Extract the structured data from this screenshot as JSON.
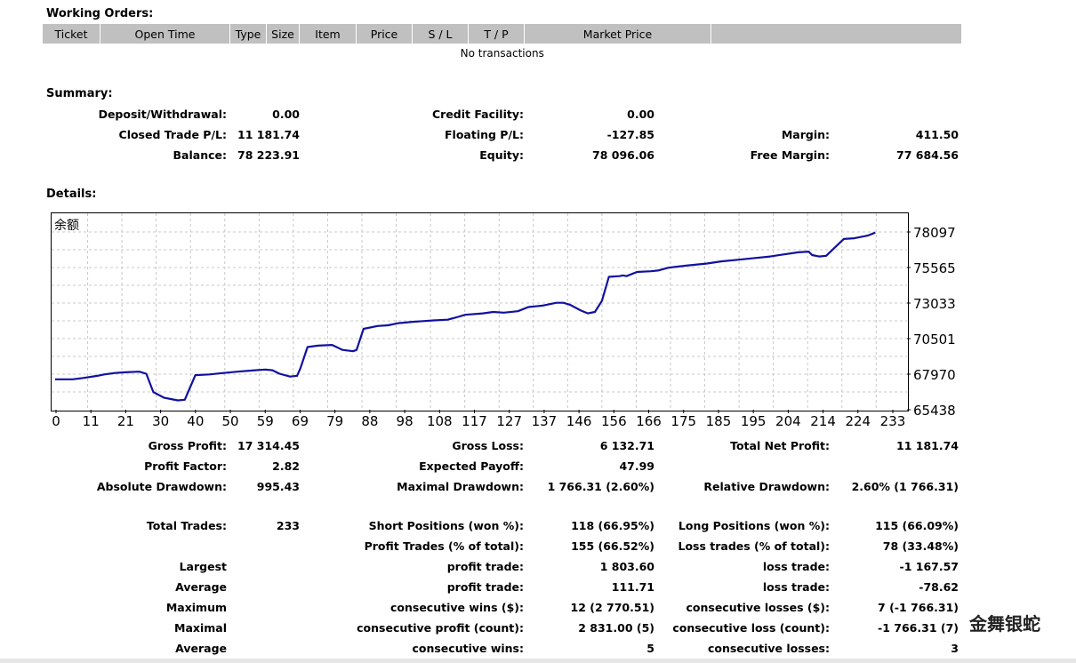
{
  "working_orders": {
    "title": "Working Orders:",
    "columns": [
      "Ticket",
      "Open Time",
      "Type",
      "Size",
      "Item",
      "Price",
      "S / L",
      "T / P",
      "Market Price",
      ""
    ],
    "empty_message": "No transactions"
  },
  "summary": {
    "title": "Summary:",
    "deposit_label": "Deposit/Withdrawal:",
    "deposit_value": "0.00",
    "credit_label": "Credit Facility:",
    "credit_value": "0.00",
    "closed_pl_label": "Closed Trade P/L:",
    "closed_pl_value": "11 181.74",
    "floating_pl_label": "Floating P/L:",
    "floating_pl_value": "-127.85",
    "margin_label": "Margin:",
    "margin_value": "411.50",
    "balance_label": "Balance:",
    "balance_value": "78 223.91",
    "equity_label": "Equity:",
    "equity_value": "78 096.06",
    "free_margin_label": "Free Margin:",
    "free_margin_value": "77 684.56"
  },
  "details": {
    "title": "Details:"
  },
  "chart_data": {
    "type": "line",
    "title": "余额",
    "line_color": "#1010a0",
    "grid": true,
    "x_ticks": [
      "0",
      "11",
      "21",
      "30",
      "40",
      "50",
      "59",
      "69",
      "79",
      "88",
      "98",
      "108",
      "117",
      "127",
      "137",
      "146",
      "156",
      "166",
      "175",
      "185",
      "195",
      "204",
      "214",
      "224",
      "233"
    ],
    "y_ticks": [
      "78097",
      "75565",
      "73033",
      "70501",
      "67970",
      "65438"
    ],
    "ylim": [
      65438,
      78097
    ],
    "xlim": [
      0,
      239
    ],
    "series": [
      {
        "x": [
          0,
          5,
          8,
          12,
          14,
          17,
          20,
          24,
          26,
          28,
          31,
          33,
          35,
          37,
          40,
          44,
          48,
          52,
          57,
          60,
          62,
          64,
          67,
          69,
          70,
          72,
          75,
          79,
          82,
          85,
          86,
          88,
          92,
          95,
          98,
          102,
          105,
          108,
          112,
          115,
          117,
          122,
          125,
          128,
          132,
          135,
          137,
          139,
          141,
          143,
          145,
          147,
          150,
          152,
          154,
          156,
          158,
          161,
          162,
          163,
          166,
          170,
          172,
          175,
          180,
          186,
          190,
          196,
          200,
          204,
          208,
          212,
          215,
          216,
          218,
          220,
          225,
          228,
          232,
          234
        ],
        "y": [
          67600,
          67600,
          67700,
          67850,
          67950,
          68050,
          68100,
          68150,
          68000,
          66700,
          66300,
          66200,
          66100,
          66150,
          67900,
          67950,
          68050,
          68150,
          68250,
          68300,
          68250,
          68000,
          67800,
          67850,
          68400,
          69900,
          70000,
          70050,
          69700,
          69600,
          69700,
          71200,
          71400,
          71450,
          71600,
          71700,
          71750,
          71800,
          71850,
          72050,
          72200,
          72300,
          72400,
          72350,
          72450,
          72750,
          72800,
          72850,
          72950,
          73050,
          73050,
          72900,
          72500,
          72300,
          72400,
          73200,
          74900,
          74950,
          75000,
          74950,
          75250,
          75300,
          75350,
          75550,
          75700,
          75850,
          76000,
          76150,
          76250,
          76350,
          76500,
          76650,
          76700,
          76450,
          76350,
          76400,
          77600,
          77650,
          77850,
          78050
        ]
      }
    ]
  },
  "stats": {
    "gross_profit_label": "Gross Profit:",
    "gross_profit_value": "17 314.45",
    "gross_loss_label": "Gross Loss:",
    "gross_loss_value": "6 132.71",
    "total_net_label": "Total Net Profit:",
    "total_net_value": "11 181.74",
    "profit_factor_label": "Profit Factor:",
    "profit_factor_value": "2.82",
    "expected_payoff_label": "Expected Payoff:",
    "expected_payoff_value": "47.99",
    "abs_dd_label": "Absolute Drawdown:",
    "abs_dd_value": "995.43",
    "max_dd_label": "Maximal Drawdown:",
    "max_dd_value": "1 766.31 (2.60%)",
    "rel_dd_label": "Relative Drawdown:",
    "rel_dd_value": "2.60% (1 766.31)",
    "total_trades_label": "Total Trades:",
    "total_trades_value": "233",
    "short_label": "Short Positions (won %):",
    "short_value": "118 (66.95%)",
    "long_label": "Long Positions (won %):",
    "long_value": "115 (66.09%)",
    "profit_trades_label": "Profit Trades (% of total):",
    "profit_trades_value": "155 (66.52%)",
    "loss_trades_label": "Loss trades (% of total):",
    "loss_trades_value": "78 (33.48%)",
    "largest_label": "Largest",
    "largest_profit_label": "profit trade:",
    "largest_profit_value": "1 803.60",
    "largest_loss_label": "loss trade:",
    "largest_loss_value": "-1 167.57",
    "average_label": "Average",
    "average_profit_label": "profit trade:",
    "average_profit_value": "111.71",
    "average_loss_label": "loss trade:",
    "average_loss_value": "-78.62",
    "maximum_label": "Maximum",
    "max_wins_label": "consecutive wins ($):",
    "max_wins_value": "12 (2 770.51)",
    "max_losses_label": "consecutive losses ($):",
    "max_losses_value": "7 (-1 766.31)",
    "maximal_label": "Maximal",
    "maximal_profit_label": "consecutive profit (count):",
    "maximal_profit_value": "2 831.00 (5)",
    "maximal_loss_label": "consecutive loss (count):",
    "maximal_loss_value": "-1 766.31 (7)",
    "avg_cons_label": "Average",
    "avg_cons_wins_label": "consecutive wins:",
    "avg_cons_wins_value": "5",
    "avg_cons_losses_label": "consecutive losses:",
    "avg_cons_losses_value": "3"
  },
  "watermark": "金舞银蛇"
}
